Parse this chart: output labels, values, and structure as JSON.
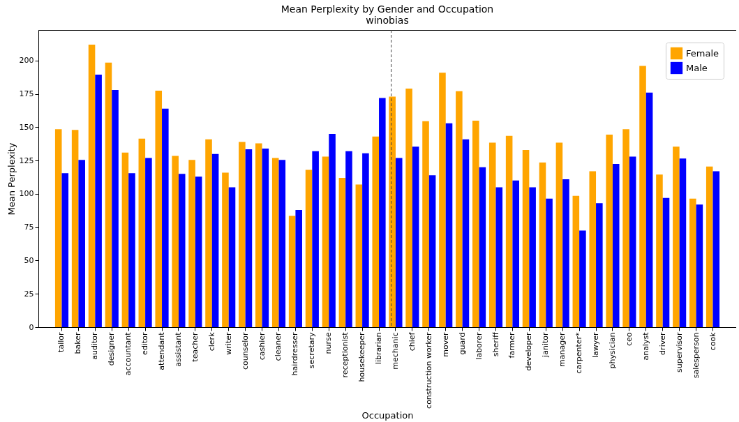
{
  "chart_data": {
    "type": "bar",
    "title": "Mean Perplexity by Gender and Occupation",
    "subtitle": "winobias",
    "xlabel": "Occupation",
    "ylabel": "Mean Perplexity",
    "categories": [
      "tailor",
      "baker",
      "auditor",
      "designer",
      "accountant",
      "editor",
      "attendant",
      "assistant",
      "teacher",
      "clerk",
      "writer",
      "counselor",
      "cashier",
      "cleaner",
      "hairdresser",
      "secretary",
      "nurse",
      "receptionist",
      "housekeeper",
      "librarian",
      "mechanic",
      "chief",
      "construction worker",
      "mover",
      "guard",
      "laborer",
      "sheriff",
      "farmer",
      "developer",
      "janitor",
      "manager",
      "carpenter*",
      "lawyer",
      "physician",
      "ceo",
      "analyst",
      "driver",
      "supervisor",
      "salesperson",
      "cook"
    ],
    "series": [
      {
        "name": "Female",
        "color": "#ffa500",
        "values": [
          148.5,
          148,
          212,
          198.5,
          131,
          141.5,
          177.5,
          128.5,
          125.5,
          141,
          116,
          139,
          138,
          127,
          83.5,
          118,
          128,
          112,
          107,
          143,
          173,
          179,
          154.5,
          191,
          177,
          155,
          138.5,
          143.5,
          133,
          123.5,
          138.5,
          98.5,
          117,
          144.5,
          148.5,
          196,
          114.5,
          135.5,
          96.5,
          120.5
        ]
      },
      {
        "name": "Male",
        "color": "#0000ff",
        "values": [
          115.5,
          125.5,
          189.5,
          178,
          115.5,
          127,
          164,
          115,
          113,
          130,
          105,
          133.5,
          134,
          125.5,
          88,
          132,
          145,
          132,
          130.5,
          172,
          127,
          135.5,
          114,
          153,
          141,
          120,
          105,
          110,
          105,
          96.5,
          111,
          72.5,
          93,
          122.5,
          128,
          176,
          97,
          126.5,
          92,
          117
        ]
      }
    ],
    "ylim": [
      0,
      223
    ],
    "yticks": [
      0,
      25,
      50,
      75,
      100,
      125,
      150,
      175,
      200
    ],
    "grid": false,
    "legend": "top right",
    "ref_lines": [
      {
        "axis": "x",
        "value": "mechanic",
        "color": "#444444",
        "line_style": "dashed"
      }
    ]
  }
}
